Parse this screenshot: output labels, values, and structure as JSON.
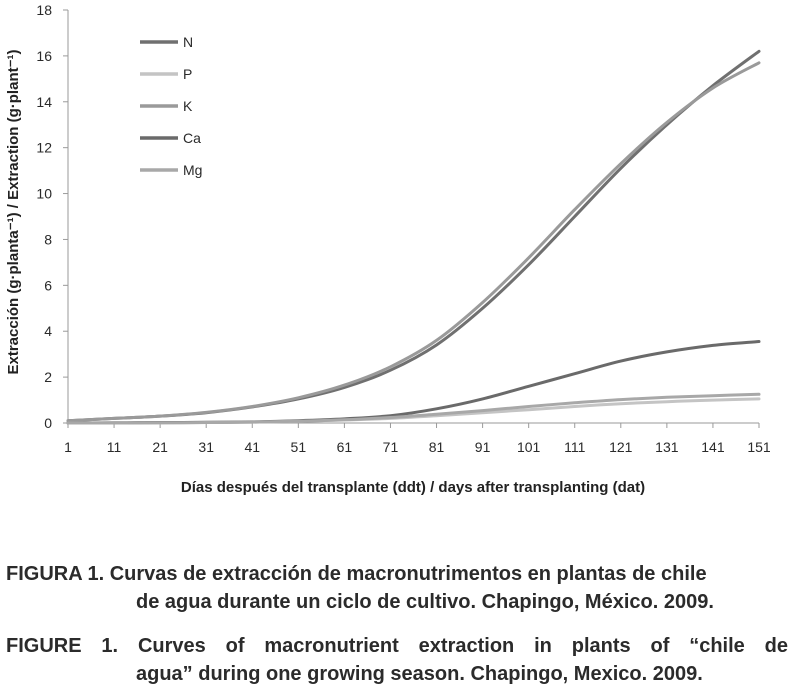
{
  "chart_data": {
    "type": "line",
    "xlabel": "Días después del transplante (ddt) / days after transplanting (dat)",
    "ylabel": "Extracción (g·planta⁻¹) / Extraction (g·plant⁻¹)",
    "xticks": [
      1,
      11,
      21,
      31,
      41,
      51,
      61,
      71,
      81,
      91,
      101,
      111,
      121,
      131,
      141,
      151
    ],
    "yticks": [
      0,
      2,
      4,
      6,
      8,
      10,
      12,
      14,
      16,
      18
    ],
    "xlim": [
      1,
      151
    ],
    "ylim": [
      0,
      18
    ],
    "legend_position": "top-left",
    "x": [
      1,
      11,
      21,
      31,
      41,
      51,
      61,
      71,
      81,
      91,
      101,
      111,
      121,
      131,
      141,
      151
    ],
    "series": [
      {
        "name": "N",
        "color": "#707070",
        "values": [
          0.1,
          0.2,
          0.3,
          0.45,
          0.7,
          1.05,
          1.55,
          2.3,
          3.4,
          5.0,
          6.9,
          9.0,
          11.1,
          13.0,
          14.7,
          16.2
        ]
      },
      {
        "name": "P",
        "color": "#c4c4c4",
        "values": [
          0.0,
          0.0,
          0.0,
          0.02,
          0.04,
          0.08,
          0.13,
          0.2,
          0.32,
          0.45,
          0.58,
          0.72,
          0.84,
          0.93,
          1.0,
          1.05
        ]
      },
      {
        "name": "K",
        "color": "#9a9a9a",
        "values": [
          0.1,
          0.2,
          0.3,
          0.46,
          0.72,
          1.1,
          1.65,
          2.45,
          3.6,
          5.25,
          7.2,
          9.3,
          11.3,
          13.1,
          14.6,
          15.7
        ]
      },
      {
        "name": "Ca",
        "color": "#6a6a6a",
        "values": [
          0.0,
          0.01,
          0.02,
          0.03,
          0.05,
          0.1,
          0.18,
          0.32,
          0.62,
          1.05,
          1.6,
          2.15,
          2.7,
          3.1,
          3.38,
          3.55
        ]
      },
      {
        "name": "Mg",
        "color": "#a8a8a8",
        "values": [
          0.0,
          0.0,
          0.01,
          0.02,
          0.04,
          0.08,
          0.14,
          0.24,
          0.38,
          0.54,
          0.72,
          0.88,
          1.02,
          1.12,
          1.19,
          1.25
        ]
      }
    ]
  },
  "caption_es": {
    "head": "FIGURA 1. Curvas de extracción de macronutrimentos en plantas de chile",
    "cont": "de agua durante un ciclo de cultivo. Chapingo, México. 2009."
  },
  "caption_en": {
    "head": "FIGURE 1. Curves of macronutrient extraction in plants of “chile de",
    "cont": "agua” during one growing season. Chapingo, Mexico. 2009."
  }
}
